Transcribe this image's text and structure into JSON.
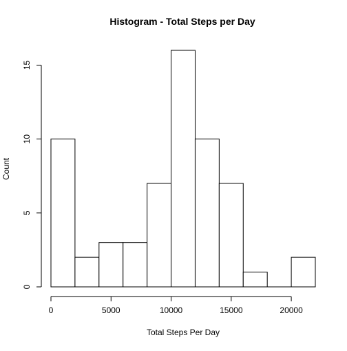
{
  "chart_data": {
    "type": "bar",
    "title": "Histogram - Total Steps per Day",
    "xlabel": "Total Steps Per Day",
    "ylabel": "Count",
    "bin_edges": [
      0,
      2000,
      4000,
      6000,
      8000,
      10000,
      12000,
      14000,
      16000,
      18000,
      20000,
      22000
    ],
    "values": [
      10,
      2,
      3,
      3,
      7,
      16,
      10,
      7,
      1,
      0,
      2
    ],
    "xlim": [
      0,
      22000
    ],
    "ylim": [
      0,
      16
    ],
    "x_ticks": [
      0,
      5000,
      10000,
      15000,
      20000
    ],
    "x_tick_labels": [
      "0",
      "5000",
      "10000",
      "15000",
      "20000"
    ],
    "y_ticks": [
      0,
      5,
      10,
      15
    ],
    "y_tick_labels": [
      "0",
      "5",
      "10",
      "15"
    ],
    "grid": false,
    "legend": "none",
    "colors": {
      "bar_fill": "#ffffff",
      "bar_stroke": "#000000",
      "axis": "#000000"
    }
  }
}
